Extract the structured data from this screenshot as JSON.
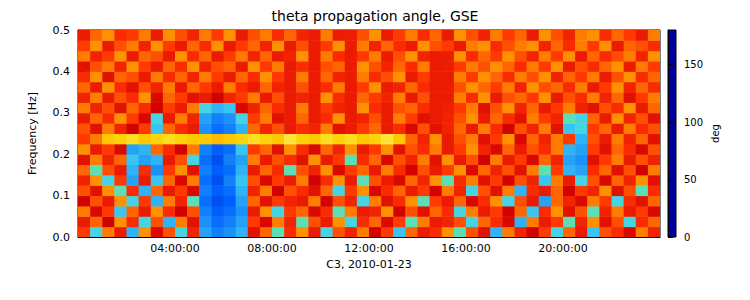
{
  "chart_data": {
    "type": "heatmap",
    "title": "theta propagation angle, GSE",
    "x_label": "C3, 2010-01-23",
    "y_label": "Frequency [Hz]",
    "xlim": [
      0,
      24
    ],
    "xticks": [
      {
        "value": 4,
        "label": "04:00:00"
      },
      {
        "value": 8,
        "label": "08:00:00"
      },
      {
        "value": 12,
        "label": "12:00:00"
      },
      {
        "value": 16,
        "label": "16:00:00"
      },
      {
        "value": 20,
        "label": "20:00:00"
      }
    ],
    "ylim": [
      0,
      0.5
    ],
    "yticks": [
      {
        "value": 0,
        "label": "0.0"
      },
      0.1,
      0.2,
      0.3,
      0.4,
      0.5
    ],
    "grid": false,
    "colorbar_range": [
      0,
      180
    ],
    "colorbar_ticks": [
      0,
      50,
      100,
      150
    ],
    "colorbar_label": "deg",
    "x": [
      0,
      0.5,
      1,
      1.5,
      2,
      2.5,
      3,
      3.5,
      4,
      4.5,
      5,
      5.5,
      6,
      6.5,
      7,
      7.5,
      8,
      8.5,
      9,
      9.5,
      10,
      10.5,
      11,
      11.5,
      12,
      12.5,
      13,
      13.5,
      14,
      14.5,
      15,
      15.5,
      16,
      16.5,
      17,
      17.5,
      18,
      18.5,
      19,
      19.5,
      20,
      20.5,
      21,
      21.5,
      22,
      22.5,
      23,
      23.5
    ],
    "y": [
      0,
      0.025,
      0.05,
      0.075,
      0.1,
      0.125,
      0.15,
      0.175,
      0.2,
      0.225,
      0.25,
      0.275,
      0.3,
      0.325,
      0.35,
      0.375,
      0.4,
      0.425,
      0.45,
      0.475
    ],
    "z": [
      [
        110,
        70,
        125,
        95,
        60,
        130,
        85,
        115,
        70,
        100,
        55,
        45,
        50,
        60,
        90,
        120,
        75,
        105,
        130,
        95,
        70,
        115,
        100,
        125,
        80,
        110,
        65,
        120,
        95,
        105,
        130,
        75,
        115,
        90,
        60,
        125,
        100,
        80,
        110,
        70,
        120,
        95,
        65,
        115,
        105,
        85,
        125,
        100
      ],
      [
        95,
        120,
        80,
        130,
        105,
        70,
        115,
        60,
        125,
        90,
        50,
        40,
        45,
        55,
        110,
        85,
        125,
        100,
        75,
        115,
        95,
        130,
        70,
        105,
        120,
        85,
        110,
        75,
        125,
        95,
        100,
        115,
        70,
        120,
        105,
        85,
        60,
        125,
        95,
        110,
        75,
        100,
        130,
        90,
        115,
        70,
        105,
        120
      ],
      [
        125,
        85,
        110,
        65,
        120,
        95,
        130,
        105,
        80,
        115,
        45,
        35,
        40,
        50,
        95,
        130,
        70,
        110,
        120,
        85,
        105,
        75,
        125,
        95,
        100,
        130,
        80,
        115,
        90,
        120,
        105,
        70,
        125,
        95,
        110,
        80,
        120,
        65,
        105,
        130,
        90,
        115,
        75,
        100,
        125,
        95,
        110,
        85
      ],
      [
        80,
        115,
        95,
        130,
        70,
        110,
        60,
        125,
        100,
        75,
        40,
        30,
        35,
        55,
        120,
        90,
        110,
        100,
        95,
        125,
        80,
        115,
        100,
        70,
        125,
        90,
        105,
        130,
        75,
        110,
        95,
        120,
        85,
        105,
        130,
        70,
        115,
        95,
        55,
        120,
        100,
        85,
        125,
        110,
        70,
        105,
        90,
        120
      ],
      [
        115,
        90,
        130,
        75,
        105,
        60,
        120,
        95,
        110,
        85,
        45,
        35,
        40,
        60,
        100,
        125,
        80,
        115,
        105,
        90,
        120,
        70,
        110,
        130,
        85,
        105,
        120,
        95,
        110,
        80,
        125,
        100,
        70,
        115,
        90,
        125,
        60,
        105,
        95,
        120,
        80,
        110,
        100,
        130,
        90,
        115,
        75,
        105
      ],
      [
        100,
        130,
        70,
        110,
        55,
        95,
        65,
        120,
        85,
        125,
        40,
        30,
        45,
        65,
        115,
        85,
        110,
        95,
        125,
        80,
        105,
        130,
        95,
        75,
        115,
        95,
        85,
        120,
        100,
        130,
        75,
        105,
        125,
        90,
        110,
        80,
        115,
        100,
        65,
        125,
        95,
        70,
        115,
        85,
        120,
        100,
        130,
        90
      ],
      [
        120,
        75,
        115,
        95,
        60,
        105,
        50,
        110,
        130,
        90,
        45,
        35,
        40,
        60,
        95,
        120,
        105,
        75,
        115,
        100,
        130,
        85,
        110,
        120,
        95,
        125,
        105,
        80,
        115,
        95,
        110,
        130,
        85,
        120,
        100,
        115,
        90,
        125,
        75,
        110,
        60,
        55,
        105,
        120,
        90,
        115,
        80,
        125
      ],
      [
        90,
        125,
        100,
        120,
        65,
        55,
        60,
        95,
        115,
        70,
        40,
        30,
        45,
        55,
        125,
        95,
        115,
        105,
        90,
        130,
        95,
        110,
        75,
        105,
        120,
        85,
        115,
        100,
        125,
        90,
        130,
        95,
        115,
        80,
        125,
        95,
        110,
        85,
        120,
        100,
        55,
        50,
        90,
        110,
        125,
        95,
        115,
        100
      ],
      [
        130,
        95,
        110,
        85,
        55,
        60,
        120,
        105,
        80,
        125,
        45,
        35,
        40,
        65,
        110,
        120,
        90,
        130,
        105,
        85,
        120,
        100,
        130,
        95,
        110,
        130,
        90,
        115,
        105,
        125,
        95,
        110,
        130,
        100,
        85,
        120,
        95,
        115,
        105,
        125,
        60,
        55,
        110,
        90,
        120,
        105,
        85,
        115
      ],
      [
        110,
        125,
        150,
        155,
        160,
        150,
        155,
        160,
        155,
        150,
        150,
        145,
        150,
        155,
        160,
        155,
        150,
        165,
        155,
        150,
        160,
        155,
        160,
        150,
        155,
        165,
        150,
        120,
        100,
        130,
        95,
        115,
        125,
        90,
        110,
        130,
        85,
        120,
        100,
        125,
        110,
        60,
        115,
        95,
        125,
        100,
        120,
        90
      ],
      [
        115,
        90,
        125,
        100,
        80,
        110,
        65,
        120,
        105,
        95,
        50,
        40,
        45,
        60,
        120,
        100,
        115,
        95,
        105,
        100,
        125,
        90,
        95,
        110,
        120,
        95,
        105,
        85,
        115,
        90,
        100,
        120,
        95,
        125,
        105,
        80,
        115,
        100,
        125,
        90,
        65,
        70,
        110,
        120,
        95,
        125,
        105,
        115
      ],
      [
        95,
        120,
        105,
        130,
        110,
        85,
        70,
        95,
        125,
        100,
        55,
        45,
        50,
        70,
        110,
        125,
        90,
        95,
        120,
        95,
        105,
        130,
        95,
        100,
        115,
        95,
        125,
        110,
        90,
        95,
        100,
        115,
        130,
        95,
        120,
        105,
        90,
        125,
        110,
        100,
        75,
        70,
        120,
        95,
        130,
        100,
        115,
        90
      ],
      [
        125,
        100,
        115,
        90,
        120,
        105,
        80,
        110,
        95,
        125,
        70,
        60,
        65,
        85,
        100,
        120,
        105,
        95,
        125,
        95,
        110,
        100,
        95,
        130,
        105,
        95,
        115,
        120,
        105,
        95,
        98,
        110,
        125,
        90,
        115,
        130,
        100,
        120,
        95,
        110,
        125,
        100,
        90,
        115,
        105,
        130,
        95,
        120
      ],
      [
        100,
        125,
        95,
        115,
        105,
        130,
        85,
        120,
        110,
        90,
        95,
        80,
        100,
        110,
        125,
        95,
        115,
        95,
        100,
        95,
        130,
        105,
        95,
        120,
        110,
        100,
        125,
        95,
        115,
        95,
        95,
        125,
        105,
        130,
        95,
        115,
        120,
        110,
        130,
        95,
        115,
        105,
        125,
        100,
        120,
        90,
        110,
        125
      ],
      [
        120,
        95,
        130,
        105,
        90,
        115,
        100,
        125,
        95,
        120,
        110,
        95,
        125,
        105,
        95,
        120,
        100,
        95,
        115,
        95,
        105,
        125,
        95,
        110,
        130,
        95,
        100,
        120,
        105,
        95,
        96,
        115,
        130,
        120,
        110,
        125,
        100,
        130,
        115,
        120,
        105,
        125,
        95,
        110,
        130,
        100,
        120,
        105
      ],
      [
        105,
        130,
        90,
        120,
        115,
        95,
        125,
        105,
        120,
        100,
        125,
        110,
        95,
        120,
        105,
        130,
        110,
        95,
        125,
        95,
        120,
        100,
        95,
        125,
        105,
        115,
        130,
        95,
        110,
        96,
        95,
        125,
        110,
        130,
        120,
        105,
        125,
        115,
        130,
        100,
        120,
        110,
        125,
        95,
        115,
        130,
        105,
        120
      ],
      [
        90,
        115,
        125,
        100,
        130,
        110,
        95,
        120,
        105,
        130,
        100,
        115,
        120,
        95,
        130,
        110,
        125,
        95,
        105,
        95,
        115,
        120,
        95,
        130,
        115,
        100,
        120,
        105,
        125,
        95,
        97,
        110,
        125,
        115,
        130,
        120,
        105,
        125,
        110,
        130,
        95,
        115,
        105,
        120,
        130,
        95,
        125,
        110
      ],
      [
        125,
        100,
        110,
        130,
        95,
        120,
        115,
        95,
        130,
        105,
        120,
        95,
        110,
        125,
        100,
        120,
        95,
        100,
        130,
        95,
        125,
        105,
        95,
        110,
        125,
        95,
        115,
        130,
        100,
        95,
        96,
        130,
        105,
        120,
        110,
        130,
        115,
        100,
        125,
        110,
        130,
        95,
        120,
        105,
        115,
        125,
        100,
        130
      ],
      [
        110,
        130,
        95,
        115,
        125,
        100,
        130,
        110,
        95,
        120,
        105,
        130,
        95,
        110,
        120,
        100,
        130,
        95,
        115,
        96,
        110,
        130,
        95,
        125,
        100,
        120,
        105,
        95,
        130,
        115,
        110,
        95,
        125,
        130,
        105,
        115,
        125,
        130,
        100,
        120,
        105,
        125,
        110,
        130,
        95,
        120,
        115,
        105
      ],
      [
        95,
        120,
        130,
        105,
        110,
        125,
        95,
        130,
        115,
        100,
        125,
        110,
        130,
        95,
        115,
        125,
        105,
        120,
        100,
        95,
        125,
        95,
        97,
        115,
        130,
        95,
        110,
        125,
        105,
        120,
        95,
        130,
        115,
        100,
        125,
        110,
        120,
        95,
        130,
        115,
        100,
        125,
        130,
        105,
        120,
        110,
        95,
        125
      ]
    ]
  }
}
